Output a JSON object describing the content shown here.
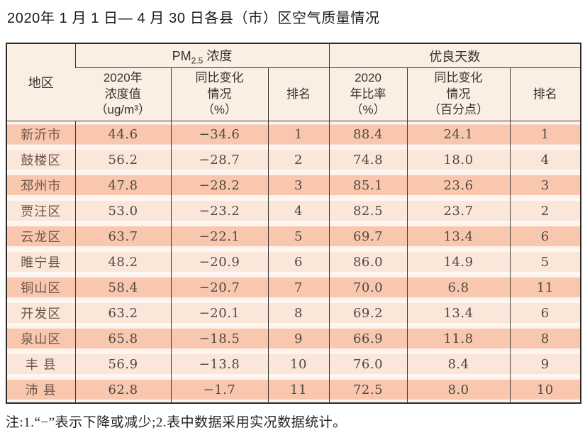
{
  "title": "2020年 1 月 1 日— 4 月 30 日各县（市）区空气质量情况",
  "table": {
    "region_header": "地区",
    "pm_group": {
      "prefix": "PM",
      "sub": "2.5",
      "suffix": " 浓度"
    },
    "good_group": "优良天数",
    "columns": {
      "pm_value": "2020年\n浓度值\n（ug/m³）",
      "pm_change": "同比变化\n情况\n（%）",
      "pm_rank": "排名",
      "good_ratio": "2020\n年比率\n（%）",
      "good_change": "同比变化\n情况\n（百分点）",
      "good_rank": "排名"
    },
    "rows": [
      {
        "region": "新沂市",
        "pm_value": "44.6",
        "pm_change": "−34.6",
        "pm_rank": "1",
        "good_ratio": "88.4",
        "good_change": "24.1",
        "good_rank": "1"
      },
      {
        "region": "鼓楼区",
        "pm_value": "56.2",
        "pm_change": "−28.7",
        "pm_rank": "2",
        "good_ratio": "74.8",
        "good_change": "18.0",
        "good_rank": "4"
      },
      {
        "region": "邳州市",
        "pm_value": "47.8",
        "pm_change": "−28.2",
        "pm_rank": "3",
        "good_ratio": "85.1",
        "good_change": "23.6",
        "good_rank": "3"
      },
      {
        "region": "贾汪区",
        "pm_value": "53.0",
        "pm_change": "−23.2",
        "pm_rank": "4",
        "good_ratio": "82.5",
        "good_change": "23.7",
        "good_rank": "2"
      },
      {
        "region": "云龙区",
        "pm_value": "63.7",
        "pm_change": "−22.1",
        "pm_rank": "5",
        "good_ratio": "69.7",
        "good_change": "13.4",
        "good_rank": "6"
      },
      {
        "region": "睢宁县",
        "pm_value": "48.2",
        "pm_change": "−20.9",
        "pm_rank": "6",
        "good_ratio": "86.0",
        "good_change": "14.9",
        "good_rank": "5"
      },
      {
        "region": "铜山区",
        "pm_value": "58.4",
        "pm_change": "−20.7",
        "pm_rank": "7",
        "good_ratio": "70.0",
        "good_change": "6.8",
        "good_rank": "11"
      },
      {
        "region": "开发区",
        "pm_value": "63.2",
        "pm_change": "−20.1",
        "pm_rank": "8",
        "good_ratio": "69.2",
        "good_change": "13.4",
        "good_rank": "6"
      },
      {
        "region": "泉山区",
        "pm_value": "65.8",
        "pm_change": "−18.5",
        "pm_rank": "9",
        "good_ratio": "66.9",
        "good_change": "11.8",
        "good_rank": "8"
      },
      {
        "region": "丰 县",
        "pm_value": "56.9",
        "pm_change": "−13.8",
        "pm_rank": "10",
        "good_ratio": "76.0",
        "good_change": "8.4",
        "good_rank": "9"
      },
      {
        "region": "沛 县",
        "pm_value": "62.8",
        "pm_change": "−1.7",
        "pm_rank": "11",
        "good_ratio": "72.5",
        "good_change": "8.0",
        "good_rank": "10"
      }
    ]
  },
  "note": "注:1.“−”表示下降或减少;2.表中数据采用实况数据统计。",
  "colors": {
    "band_dark": "#f8c7ae",
    "band_light": "#fbe6da",
    "header_bg": "#fbeee3",
    "border": "#3d3833"
  }
}
